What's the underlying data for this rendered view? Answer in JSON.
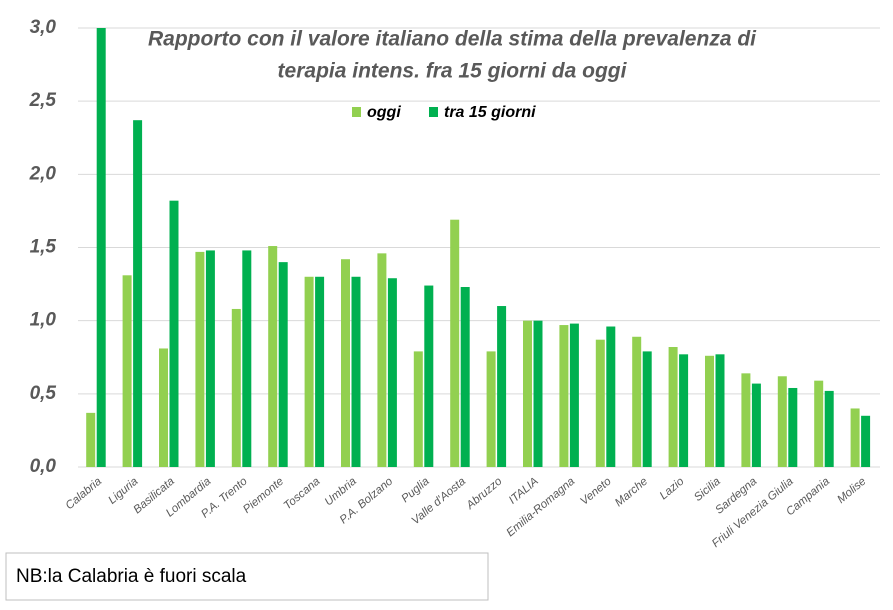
{
  "chart_data": {
    "type": "bar",
    "title_lines": [
      "Rapporto con il valore italiano della stima della prevalenza di",
      "terapia intens. fra 15 giorni da oggi"
    ],
    "categories": [
      "Calabria",
      "Liguria",
      "Basilicata",
      "Lombardia",
      "P.A. Trento",
      "Piemonte",
      "Toscana",
      "Umbria",
      "P.A. Bolzano",
      "Puglia",
      "Valle d'Aosta",
      "Abruzzo",
      "ITALIA",
      "Emilia-Romagna",
      "Veneto",
      "Marche",
      "Lazio",
      "Sicilia",
      "Sardegna",
      "Friuli Venezia Giulia",
      "Campania",
      "Molise"
    ],
    "series": [
      {
        "name": "oggi",
        "color": "#92d050",
        "values": [
          0.37,
          1.31,
          0.81,
          1.47,
          1.08,
          1.51,
          1.3,
          1.42,
          1.46,
          0.79,
          1.69,
          0.79,
          1.0,
          0.97,
          0.87,
          0.89,
          0.82,
          0.76,
          0.64,
          0.62,
          0.59,
          0.4
        ]
      },
      {
        "name": "tra 15 giorni",
        "color": "#00b050",
        "values": [
          3.0,
          2.37,
          1.82,
          1.48,
          1.48,
          1.4,
          1.3,
          1.3,
          1.29,
          1.24,
          1.23,
          1.1,
          1.0,
          0.98,
          0.96,
          0.79,
          0.77,
          0.77,
          0.57,
          0.54,
          0.52,
          0.35
        ]
      }
    ],
    "ylim": [
      0,
      3
    ],
    "yticks": [
      {
        "value": 0,
        "label": "0,0"
      },
      {
        "value": 0.5,
        "label": "0,5"
      },
      {
        "value": 1,
        "label": "1,0"
      },
      {
        "value": 1.5,
        "label": "1,5"
      },
      {
        "value": 2,
        "label": "2,0"
      },
      {
        "value": 2.5,
        "label": "2,5"
      },
      {
        "value": 3,
        "label": "3,0"
      }
    ],
    "grid": true,
    "note": "NB:la Calabria è fuori scala"
  }
}
